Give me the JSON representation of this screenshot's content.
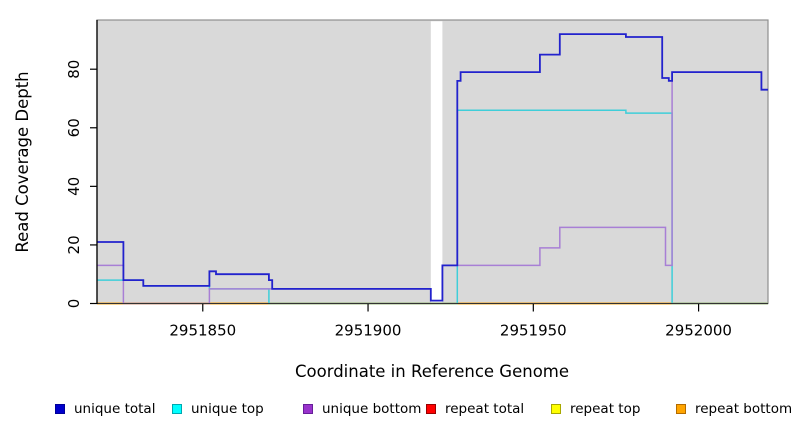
{
  "figure": {
    "xlabel": "Coordinate in Reference Genome",
    "ylabel": "Read Coverage Depth",
    "panel_background": "#d9d9d9",
    "panel_border_color": "#8f8f8f",
    "axis_color": "#000000",
    "x_tick_labels": [
      "2951850",
      "2951900",
      "2951950",
      "2952000"
    ],
    "y_tick_labels": [
      "0",
      "20",
      "40",
      "60",
      "80"
    ]
  },
  "chart_data": {
    "type": "line",
    "title": "",
    "xlabel": "Coordinate in Reference Genome",
    "ylabel": "Read Coverage Depth",
    "x_ticks": [
      2951850,
      2951900,
      2951950,
      2952000
    ],
    "y_ticks": [
      0,
      20,
      40,
      60,
      80
    ],
    "xlim": [
      2951818,
      2952021
    ],
    "ylim": [
      0,
      96.8
    ],
    "grid": false,
    "legend_position": "bottom",
    "gap_region": [
      2951919.0,
      2951922.5
    ],
    "draw_order": [
      "repeat total",
      "repeat top",
      "repeat bottom",
      "unique top",
      "unique bottom",
      "unique total"
    ],
    "series": [
      {
        "name": "unique total",
        "line_color": "#2222cd",
        "line_width": 1.8,
        "legend_fill": "#0000cc",
        "legend_border": "#000099",
        "points": [
          [
            2951818,
            21
          ],
          [
            2951826,
            21
          ],
          [
            2951826,
            8
          ],
          [
            2951832,
            8
          ],
          [
            2951832,
            6
          ],
          [
            2951852,
            6
          ],
          [
            2951852,
            11
          ],
          [
            2951854,
            11
          ],
          [
            2951854,
            10
          ],
          [
            2951870,
            10
          ],
          [
            2951870,
            8
          ],
          [
            2951871,
            8
          ],
          [
            2951871,
            5
          ],
          [
            2951919,
            5
          ],
          [
            2951919,
            1
          ],
          [
            2951922.5,
            1
          ],
          [
            2951922.5,
            13
          ],
          [
            2951927,
            13
          ],
          [
            2951927,
            76
          ],
          [
            2951928,
            76
          ],
          [
            2951928,
            79
          ],
          [
            2951952,
            79
          ],
          [
            2951952,
            85
          ],
          [
            2951958,
            85
          ],
          [
            2951958,
            92
          ],
          [
            2951978,
            92
          ],
          [
            2951978,
            91
          ],
          [
            2951989,
            91
          ],
          [
            2951989,
            77
          ],
          [
            2951991,
            77
          ],
          [
            2951991,
            76
          ],
          [
            2951992,
            76
          ],
          [
            2951992,
            79
          ],
          [
            2952019,
            79
          ],
          [
            2952019,
            73
          ],
          [
            2952021,
            73
          ]
        ]
      },
      {
        "name": "unique top",
        "line_color": "#3fced9",
        "line_width": 1.5,
        "legend_fill": "#00ffff",
        "legend_border": "#00a8b0",
        "points": [
          [
            2951818,
            8
          ],
          [
            2951832,
            8
          ],
          [
            2951832,
            6
          ],
          [
            2951852,
            6
          ],
          [
            2951852,
            5
          ],
          [
            2951870,
            5
          ],
          [
            2951870,
            0
          ],
          [
            2951927,
            0
          ],
          [
            2951927,
            66
          ],
          [
            2951978,
            66
          ],
          [
            2951978,
            65
          ],
          [
            2951992,
            65
          ],
          [
            2951992,
            0
          ],
          [
            2952021,
            0
          ]
        ]
      },
      {
        "name": "unique bottom",
        "line_color": "#a87fd5",
        "line_width": 1.5,
        "legend_fill": "#9933cc",
        "legend_border": "#661f99",
        "points": [
          [
            2951818,
            13
          ],
          [
            2951826,
            13
          ],
          [
            2951826,
            0
          ],
          [
            2951852,
            0
          ],
          [
            2951852,
            5
          ],
          [
            2951919,
            5
          ],
          [
            2951919,
            1
          ],
          [
            2951922.5,
            1
          ],
          [
            2951922.5,
            13
          ],
          [
            2951952,
            13
          ],
          [
            2951952,
            19
          ],
          [
            2951958,
            19
          ],
          [
            2951958,
            26
          ],
          [
            2951990,
            26
          ],
          [
            2951990,
            13
          ],
          [
            2951992,
            13
          ],
          [
            2951992,
            79
          ],
          [
            2952019,
            79
          ],
          [
            2952019,
            73
          ],
          [
            2952021,
            73
          ]
        ]
      },
      {
        "name": "repeat total",
        "line_color": "#dd0000",
        "line_width": 1.5,
        "legend_fill": "#ff0000",
        "legend_border": "#990000",
        "points": [
          [
            2951818,
            0
          ],
          [
            2951919,
            0
          ],
          [
            2951922.5,
            0
          ],
          [
            2952021,
            0
          ]
        ]
      },
      {
        "name": "repeat top",
        "line_color": "#e8e800",
        "line_width": 1.5,
        "legend_fill": "#ffff00",
        "legend_border": "#a8a800",
        "points": [
          [
            2951818,
            0
          ],
          [
            2951919,
            0
          ],
          [
            2951922.5,
            0
          ],
          [
            2952021,
            0
          ]
        ]
      },
      {
        "name": "repeat bottom",
        "line_color": "#ff9900",
        "line_width": 1.5,
        "legend_fill": "#ffa500",
        "legend_border": "#b36b00",
        "points": [
          [
            2951818,
            0
          ],
          [
            2951919,
            0
          ],
          [
            2951922.5,
            0
          ],
          [
            2952021,
            0
          ]
        ]
      }
    ]
  },
  "legend": {
    "items": [
      {
        "label": "unique total"
      },
      {
        "label": "unique top"
      },
      {
        "label": "unique bottom"
      },
      {
        "label": "repeat total"
      },
      {
        "label": "repeat top"
      },
      {
        "label": "repeat bottom"
      }
    ]
  }
}
